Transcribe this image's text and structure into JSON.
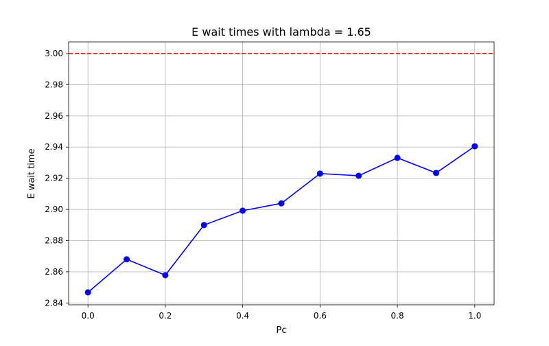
{
  "chart_data": {
    "type": "line",
    "title": "E wait times with lambda = 1.65",
    "xlabel": "Pc",
    "ylabel": "E wait time",
    "xlim": [
      -0.05,
      1.05
    ],
    "ylim": [
      2.8388,
      3.0075
    ],
    "grid": true,
    "x_ticks": [
      0.0,
      0.2,
      0.4,
      0.6,
      0.8,
      1.0
    ],
    "x_tick_labels": [
      "0.0",
      "0.2",
      "0.4",
      "0.6",
      "0.8",
      "1.0"
    ],
    "y_ticks": [
      2.84,
      2.86,
      2.88,
      2.9,
      2.92,
      2.94,
      2.96,
      2.98,
      3.0
    ],
    "y_tick_labels": [
      "2.84",
      "2.86",
      "2.88",
      "2.90",
      "2.92",
      "2.94",
      "2.96",
      "2.98",
      "3.00"
    ],
    "series": [
      {
        "color": "#0000ff",
        "marker": "circle",
        "x": [
          0.0,
          0.1,
          0.2,
          0.3,
          0.4,
          0.5,
          0.6,
          0.7,
          0.8,
          0.9,
          1.0
        ],
        "y": [
          2.8468,
          2.868,
          2.8578,
          2.89,
          2.8992,
          2.9039,
          2.923,
          2.9216,
          2.9331,
          2.9234,
          2.9405
        ]
      }
    ],
    "reference_lines": [
      {
        "orientation": "horizontal",
        "y": 3.0,
        "color": "#ff0000",
        "style": "dashed"
      }
    ]
  }
}
